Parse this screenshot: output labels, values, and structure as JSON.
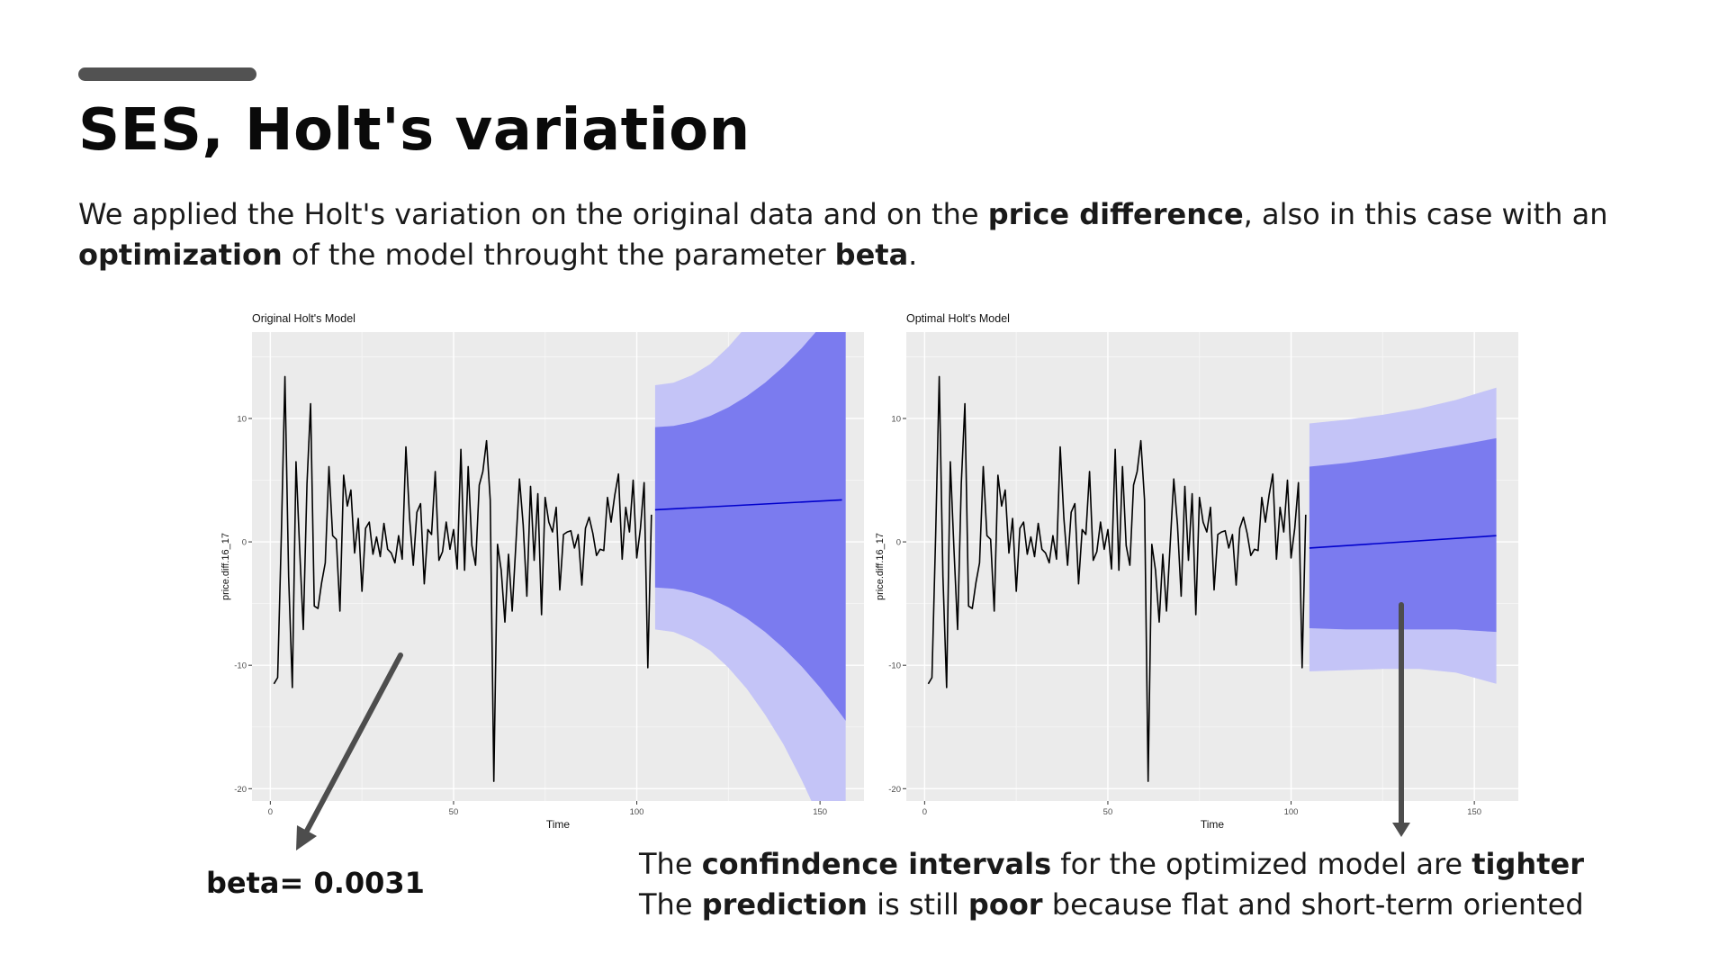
{
  "slide": {
    "title": "SES, Holt's variation",
    "intro": {
      "t1": "We applied the Holt's variation on the original data and on the ",
      "b1": "price difference",
      "t2": ", also in this case with an ",
      "b2": "optimization",
      "t3": " of the model throught the parameter ",
      "b3": "beta",
      "t4": "."
    },
    "beta_label": "beta= 0.0031",
    "conclusion": {
      "l1_t1": "The ",
      "l1_b1": "confindence intervals",
      "l1_t2": " for the optimized model are ",
      "l1_b2": "tighter",
      "l2_t1": "The ",
      "l2_b1": "prediction",
      "l2_t2": " is still ",
      "l2_b2": "poor",
      "l2_t3": " because flat and short-term oriented"
    },
    "colors": {
      "accent_bar": "#525252",
      "panel_bg": "#ebebeb",
      "series": "#000000",
      "forecast_line": "#0000cc",
      "pi80": "#7b7bef",
      "pi95": "#c4c4f7",
      "arrow": "#4d4d4d"
    }
  },
  "chart_data": [
    {
      "type": "line",
      "title": "Original Holt's Model",
      "xlabel": "Time",
      "ylabel": "price.diff.16_17",
      "xlim": [
        -5,
        162
      ],
      "ylim": [
        -21,
        17
      ],
      "xticks": [
        0,
        50,
        100,
        150
      ],
      "yticks": [
        -20,
        -10,
        0,
        10
      ],
      "grid": true,
      "legend": "none",
      "series": [
        {
          "x": [
            1,
            2,
            3,
            4,
            5,
            6,
            7,
            8,
            9,
            10,
            11,
            12,
            13,
            14,
            15,
            16,
            17,
            18,
            19,
            20,
            21,
            22,
            23,
            24,
            25,
            26,
            27,
            28,
            29,
            30,
            31,
            32,
            33,
            34,
            35,
            36,
            37,
            38,
            39,
            40,
            41,
            42,
            43,
            44,
            45,
            46,
            47,
            48,
            49,
            50,
            51,
            52,
            53,
            54,
            55,
            56,
            57,
            58,
            59,
            60,
            61,
            62,
            63,
            64,
            65,
            66,
            67,
            68,
            69,
            70,
            71,
            72,
            73,
            74,
            75,
            76,
            77,
            78,
            79,
            80,
            81,
            82,
            83,
            84,
            85,
            86,
            87,
            88,
            89,
            90,
            91,
            92,
            93,
            94,
            95,
            96,
            97,
            98,
            99,
            100,
            101,
            102,
            103,
            104
          ],
          "y": [
            -11.5,
            -11,
            0.5,
            13.4,
            -2.8,
            -11.8,
            6.5,
            -0.5,
            -7.1,
            4.7,
            11.2,
            -5.2,
            -5.4,
            -3.3,
            -1.7,
            6.1,
            0.5,
            0.2,
            -5.6,
            5.4,
            2.9,
            4.2,
            -0.9,
            1.9,
            -4,
            1.1,
            1.6,
            -1,
            0.4,
            -1.2,
            1.5,
            -0.6,
            -0.9,
            -1.7,
            0.5,
            -1.4,
            7.7,
            1.9,
            -1.9,
            2.4,
            3.1,
            -3.4,
            1,
            0.6,
            5.7,
            -1.5,
            -0.8,
            1.6,
            -0.6,
            1,
            -2.2,
            7.5,
            -2.3,
            6.1,
            -0.3,
            -1.9,
            4.6,
            5.7,
            8.2,
            3.4,
            -19.4,
            -0.2,
            -2.3,
            -6.5,
            -1,
            -5.6,
            -0.2,
            5.1,
            1.4,
            -4.4,
            4.5,
            -1.5,
            3.9,
            -5.9,
            3.6,
            1.6,
            0.8,
            2.8,
            -3.9,
            0.6,
            0.8,
            0.9,
            -0.5,
            0.6,
            -3.5,
            1.1,
            2,
            0.7,
            -1.1,
            -0.6,
            -0.7,
            3.6,
            1.6,
            3.8,
            5.5,
            -1.4,
            2.8,
            0.8,
            5,
            -1.3,
            1.1,
            4.8,
            -10.2,
            2.2
          ],
          "name": ""
        }
      ],
      "forecast": {
        "x": [
          105,
          156
        ],
        "mean": [
          2.6,
          3.4
        ],
        "band_x": [
          105,
          110,
          115,
          120,
          125,
          130,
          135,
          140,
          145,
          150,
          155,
          157
        ],
        "lo80": [
          -3.7,
          -3.8,
          -4.1,
          -4.6,
          -5.3,
          -6.2,
          -7.3,
          -8.6,
          -10.1,
          -11.8,
          -13.7,
          -14.5
        ],
        "hi80": [
          9.3,
          9.4,
          9.7,
          10.2,
          10.9,
          11.8,
          12.9,
          14.2,
          15.7,
          17.4,
          19.3,
          20.1
        ],
        "lo95": [
          -7.1,
          -7.3,
          -7.9,
          -8.8,
          -10.2,
          -11.9,
          -14,
          -16.4,
          -19.3,
          -22.5,
          -26.2,
          -27.6
        ],
        "hi95": [
          12.7,
          12.9,
          13.5,
          14.4,
          15.8,
          17.5,
          19.6,
          22,
          24.9,
          28.1,
          31.8,
          33.2
        ]
      }
    },
    {
      "type": "line",
      "title": "Optimal Holt's Model",
      "xlabel": "Time",
      "ylabel": "price.diff.16_17",
      "xlim": [
        -5,
        162
      ],
      "ylim": [
        -21,
        17
      ],
      "xticks": [
        0,
        50,
        100,
        150
      ],
      "yticks": [
        -20,
        -10,
        0,
        10
      ],
      "grid": true,
      "legend": "none",
      "series": [
        {
          "x": [
            1,
            2,
            3,
            4,
            5,
            6,
            7,
            8,
            9,
            10,
            11,
            12,
            13,
            14,
            15,
            16,
            17,
            18,
            19,
            20,
            21,
            22,
            23,
            24,
            25,
            26,
            27,
            28,
            29,
            30,
            31,
            32,
            33,
            34,
            35,
            36,
            37,
            38,
            39,
            40,
            41,
            42,
            43,
            44,
            45,
            46,
            47,
            48,
            49,
            50,
            51,
            52,
            53,
            54,
            55,
            56,
            57,
            58,
            59,
            60,
            61,
            62,
            63,
            64,
            65,
            66,
            67,
            68,
            69,
            70,
            71,
            72,
            73,
            74,
            75,
            76,
            77,
            78,
            79,
            80,
            81,
            82,
            83,
            84,
            85,
            86,
            87,
            88,
            89,
            90,
            91,
            92,
            93,
            94,
            95,
            96,
            97,
            98,
            99,
            100,
            101,
            102,
            103,
            104
          ],
          "y": [
            -11.5,
            -11,
            0.5,
            13.4,
            -2.8,
            -11.8,
            6.5,
            -0.5,
            -7.1,
            4.7,
            11.2,
            -5.2,
            -5.4,
            -3.3,
            -1.7,
            6.1,
            0.5,
            0.2,
            -5.6,
            5.4,
            2.9,
            4.2,
            -0.9,
            1.9,
            -4,
            1.1,
            1.6,
            -1,
            0.4,
            -1.2,
            1.5,
            -0.6,
            -0.9,
            -1.7,
            0.5,
            -1.4,
            7.7,
            1.9,
            -1.9,
            2.4,
            3.1,
            -3.4,
            1,
            0.6,
            5.7,
            -1.5,
            -0.8,
            1.6,
            -0.6,
            1,
            -2.2,
            7.5,
            -2.3,
            6.1,
            -0.3,
            -1.9,
            4.6,
            5.7,
            8.2,
            3.4,
            -19.4,
            -0.2,
            -2.3,
            -6.5,
            -1,
            -5.6,
            -0.2,
            5.1,
            1.4,
            -4.4,
            4.5,
            -1.5,
            3.9,
            -5.9,
            3.6,
            1.6,
            0.8,
            2.8,
            -3.9,
            0.6,
            0.8,
            0.9,
            -0.5,
            0.6,
            -3.5,
            1.1,
            2,
            0.7,
            -1.1,
            -0.6,
            -0.7,
            3.6,
            1.6,
            3.8,
            5.5,
            -1.4,
            2.8,
            0.8,
            5,
            -1.3,
            1.1,
            4.8,
            -10.2,
            2.2
          ],
          "name": ""
        }
      ],
      "forecast": {
        "x": [
          105,
          156
        ],
        "mean": [
          -0.5,
          0.5
        ],
        "band_x": [
          105,
          115,
          125,
          135,
          145,
          156
        ],
        "lo80": [
          -7,
          -7.1,
          -7.1,
          -7.1,
          -7.1,
          -7.3
        ],
        "hi80": [
          6.1,
          6.4,
          6.8,
          7.3,
          7.8,
          8.4
        ],
        "lo95": [
          -10.5,
          -10.4,
          -10.3,
          -10.3,
          -10.6,
          -11.5
        ],
        "hi95": [
          9.6,
          9.9,
          10.3,
          10.8,
          11.5,
          12.5
        ]
      }
    }
  ]
}
